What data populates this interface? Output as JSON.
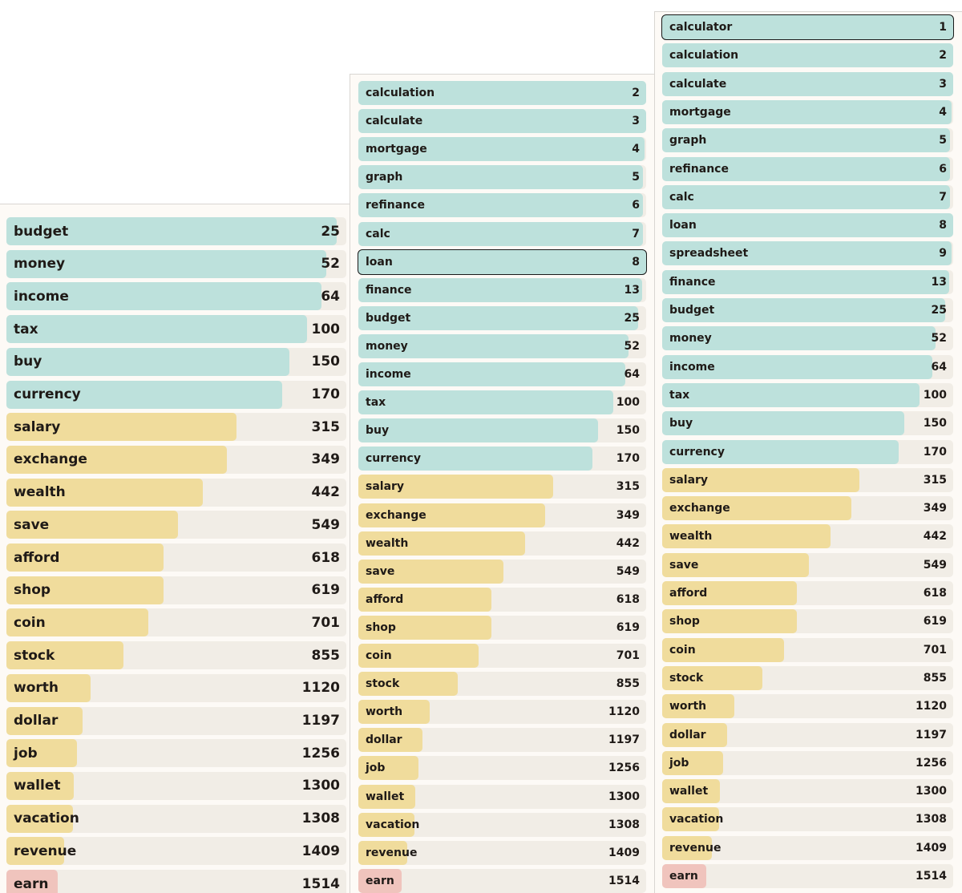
{
  "colors": {
    "tier_teal": "#bde1dc",
    "tier_yellow": "#f0dc9c",
    "tier_red": "#f0c4bd",
    "track": "#f1ede6",
    "panel_bg": "#fdfaf6",
    "selected_outline": "#1a1a1a"
  },
  "max_rank": 1600,
  "panels": [
    {
      "id": "left",
      "selected": null,
      "items": [
        {
          "word": "budget",
          "rank": 25,
          "tier": "teal"
        },
        {
          "word": "money",
          "rank": 52,
          "tier": "teal"
        },
        {
          "word": "income",
          "rank": 64,
          "tier": "teal"
        },
        {
          "word": "tax",
          "rank": 100,
          "tier": "teal"
        },
        {
          "word": "buy",
          "rank": 150,
          "tier": "teal"
        },
        {
          "word": "currency",
          "rank": 170,
          "tier": "teal"
        },
        {
          "word": "salary",
          "rank": 315,
          "tier": "yellow"
        },
        {
          "word": "exchange",
          "rank": 349,
          "tier": "yellow"
        },
        {
          "word": "wealth",
          "rank": 442,
          "tier": "yellow"
        },
        {
          "word": "save",
          "rank": 549,
          "tier": "yellow"
        },
        {
          "word": "afford",
          "rank": 618,
          "tier": "yellow"
        },
        {
          "word": "shop",
          "rank": 619,
          "tier": "yellow"
        },
        {
          "word": "coin",
          "rank": 701,
          "tier": "yellow"
        },
        {
          "word": "stock",
          "rank": 855,
          "tier": "yellow"
        },
        {
          "word": "worth",
          "rank": 1120,
          "tier": "yellow"
        },
        {
          "word": "dollar",
          "rank": 1197,
          "tier": "yellow"
        },
        {
          "word": "job",
          "rank": 1256,
          "tier": "yellow"
        },
        {
          "word": "wallet",
          "rank": 1300,
          "tier": "yellow"
        },
        {
          "word": "vacation",
          "rank": 1308,
          "tier": "yellow"
        },
        {
          "word": "revenue",
          "rank": 1409,
          "tier": "yellow"
        },
        {
          "word": "earn",
          "rank": 1514,
          "tier": "red"
        }
      ]
    },
    {
      "id": "mid",
      "selected": "loan",
      "items": [
        {
          "word": "calculation",
          "rank": 2,
          "tier": "teal"
        },
        {
          "word": "calculate",
          "rank": 3,
          "tier": "teal"
        },
        {
          "word": "mortgage",
          "rank": 4,
          "tier": "teal"
        },
        {
          "word": "graph",
          "rank": 5,
          "tier": "teal"
        },
        {
          "word": "refinance",
          "rank": 6,
          "tier": "teal"
        },
        {
          "word": "calc",
          "rank": 7,
          "tier": "teal"
        },
        {
          "word": "loan",
          "rank": 8,
          "tier": "teal"
        },
        {
          "word": "finance",
          "rank": 13,
          "tier": "teal"
        },
        {
          "word": "budget",
          "rank": 25,
          "tier": "teal"
        },
        {
          "word": "money",
          "rank": 52,
          "tier": "teal"
        },
        {
          "word": "income",
          "rank": 64,
          "tier": "teal"
        },
        {
          "word": "tax",
          "rank": 100,
          "tier": "teal"
        },
        {
          "word": "buy",
          "rank": 150,
          "tier": "teal"
        },
        {
          "word": "currency",
          "rank": 170,
          "tier": "teal"
        },
        {
          "word": "salary",
          "rank": 315,
          "tier": "yellow"
        },
        {
          "word": "exchange",
          "rank": 349,
          "tier": "yellow"
        },
        {
          "word": "wealth",
          "rank": 442,
          "tier": "yellow"
        },
        {
          "word": "save",
          "rank": 549,
          "tier": "yellow"
        },
        {
          "word": "afford",
          "rank": 618,
          "tier": "yellow"
        },
        {
          "word": "shop",
          "rank": 619,
          "tier": "yellow"
        },
        {
          "word": "coin",
          "rank": 701,
          "tier": "yellow"
        },
        {
          "word": "stock",
          "rank": 855,
          "tier": "yellow"
        },
        {
          "word": "worth",
          "rank": 1120,
          "tier": "yellow"
        },
        {
          "word": "dollar",
          "rank": 1197,
          "tier": "yellow"
        },
        {
          "word": "job",
          "rank": 1256,
          "tier": "yellow"
        },
        {
          "word": "wallet",
          "rank": 1300,
          "tier": "yellow"
        },
        {
          "word": "vacation",
          "rank": 1308,
          "tier": "yellow"
        },
        {
          "word": "revenue",
          "rank": 1409,
          "tier": "yellow"
        },
        {
          "word": "earn",
          "rank": 1514,
          "tier": "red"
        }
      ]
    },
    {
      "id": "right",
      "selected": "calculator",
      "items": [
        {
          "word": "calculator",
          "rank": 1,
          "tier": "teal"
        },
        {
          "word": "calculation",
          "rank": 2,
          "tier": "teal"
        },
        {
          "word": "calculate",
          "rank": 3,
          "tier": "teal"
        },
        {
          "word": "mortgage",
          "rank": 4,
          "tier": "teal"
        },
        {
          "word": "graph",
          "rank": 5,
          "tier": "teal"
        },
        {
          "word": "refinance",
          "rank": 6,
          "tier": "teal"
        },
        {
          "word": "calc",
          "rank": 7,
          "tier": "teal"
        },
        {
          "word": "loan",
          "rank": 8,
          "tier": "teal"
        },
        {
          "word": "spreadsheet",
          "rank": 9,
          "tier": "teal"
        },
        {
          "word": "finance",
          "rank": 13,
          "tier": "teal"
        },
        {
          "word": "budget",
          "rank": 25,
          "tier": "teal"
        },
        {
          "word": "money",
          "rank": 52,
          "tier": "teal"
        },
        {
          "word": "income",
          "rank": 64,
          "tier": "teal"
        },
        {
          "word": "tax",
          "rank": 100,
          "tier": "teal"
        },
        {
          "word": "buy",
          "rank": 150,
          "tier": "teal"
        },
        {
          "word": "currency",
          "rank": 170,
          "tier": "teal"
        },
        {
          "word": "salary",
          "rank": 315,
          "tier": "yellow"
        },
        {
          "word": "exchange",
          "rank": 349,
          "tier": "yellow"
        },
        {
          "word": "wealth",
          "rank": 442,
          "tier": "yellow"
        },
        {
          "word": "save",
          "rank": 549,
          "tier": "yellow"
        },
        {
          "word": "afford",
          "rank": 618,
          "tier": "yellow"
        },
        {
          "word": "shop",
          "rank": 619,
          "tier": "yellow"
        },
        {
          "word": "coin",
          "rank": 701,
          "tier": "yellow"
        },
        {
          "word": "stock",
          "rank": 855,
          "tier": "yellow"
        },
        {
          "word": "worth",
          "rank": 1120,
          "tier": "yellow"
        },
        {
          "word": "dollar",
          "rank": 1197,
          "tier": "yellow"
        },
        {
          "word": "job",
          "rank": 1256,
          "tier": "yellow"
        },
        {
          "word": "wallet",
          "rank": 1300,
          "tier": "yellow"
        },
        {
          "word": "vacation",
          "rank": 1308,
          "tier": "yellow"
        },
        {
          "word": "revenue",
          "rank": 1409,
          "tier": "yellow"
        },
        {
          "word": "earn",
          "rank": 1514,
          "tier": "red"
        }
      ]
    }
  ]
}
